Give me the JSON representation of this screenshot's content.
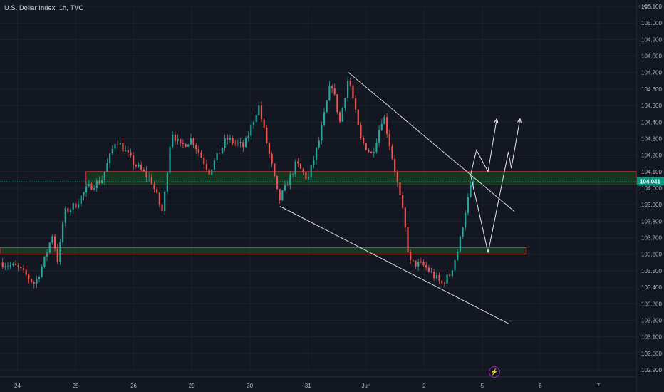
{
  "header": {
    "title": "U.S. Dollar Index, 1h, TVC",
    "currency": "USD"
  },
  "bolt_icon": "⚡",
  "colors": {
    "background": "#131722",
    "up": "#26a69a",
    "down": "#ef5350",
    "zone_fill": "#1b5e20",
    "zone_border": "#f23645",
    "price_badge": "#089981",
    "lines": "#ffffff"
  },
  "chart_data": {
    "type": "candlestick",
    "symbol": "U.S. Dollar Index",
    "timeframe": "1h",
    "source": "TVC",
    "currency": "USD",
    "ylim": [
      102.9,
      105.1
    ],
    "y_ticks": [
      "105.100",
      "105.000",
      "104.900",
      "104.800",
      "104.700",
      "104.600",
      "104.500",
      "104.400",
      "104.300",
      "104.200",
      "104.100",
      "104.000",
      "103.900",
      "103.800",
      "103.700",
      "103.600",
      "103.500",
      "103.400",
      "103.300",
      "103.200",
      "103.100",
      "103.000",
      "102.900"
    ],
    "x_ticks": [
      {
        "label": "24",
        "x": 0.3
      },
      {
        "label": "25",
        "x": 1.3
      },
      {
        "label": "26",
        "x": 2.3
      },
      {
        "label": "29",
        "x": 3.3
      },
      {
        "label": "30",
        "x": 4.3
      },
      {
        "label": "31",
        "x": 5.3
      },
      {
        "label": "Jun",
        "x": 6.3
      },
      {
        "label": "2",
        "x": 7.3
      },
      {
        "label": "5",
        "x": 8.3
      },
      {
        "label": "6",
        "x": 9.3
      },
      {
        "label": "7",
        "x": 10.3
      }
    ],
    "x_range": [
      0,
      10.95
    ],
    "grid": true,
    "last_price": "104.041",
    "price_path": [
      [
        0,
        103.55
      ],
      [
        0.3,
        103.52
      ],
      [
        0.6,
        103.42
      ],
      [
        0.75,
        103.55
      ],
      [
        0.9,
        103.72
      ],
      [
        1.0,
        103.55
      ],
      [
        1.1,
        103.85
      ],
      [
        1.3,
        103.9
      ],
      [
        1.5,
        104.0
      ],
      [
        1.75,
        104.05
      ],
      [
        2.0,
        104.3
      ],
      [
        2.3,
        104.15
      ],
      [
        2.6,
        104.05
      ],
      [
        2.8,
        103.85
      ],
      [
        2.95,
        104.35
      ],
      [
        3.1,
        104.25
      ],
      [
        3.3,
        104.3
      ],
      [
        3.6,
        104.1
      ],
      [
        3.9,
        104.3
      ],
      [
        4.2,
        104.25
      ],
      [
        4.45,
        104.5
      ],
      [
        4.7,
        104.1
      ],
      [
        4.8,
        103.92
      ],
      [
        5.1,
        104.15
      ],
      [
        5.3,
        104.05
      ],
      [
        5.5,
        104.3
      ],
      [
        5.7,
        104.65
      ],
      [
        5.85,
        104.4
      ],
      [
        6.0,
        104.68
      ],
      [
        6.2,
        104.3
      ],
      [
        6.4,
        104.2
      ],
      [
        6.6,
        104.45
      ],
      [
        6.8,
        104.1
      ],
      [
        6.95,
        103.82
      ],
      [
        7.05,
        103.55
      ],
      [
        7.3,
        103.53
      ],
      [
        7.6,
        103.42
      ],
      [
        7.75,
        103.48
      ],
      [
        7.9,
        103.65
      ],
      [
        8.0,
        103.85
      ],
      [
        8.1,
        104.0
      ],
      [
        8.15,
        104.04
      ]
    ],
    "zones": [
      {
        "low": 104.02,
        "high": 104.1,
        "x_start": 1.48,
        "x_end": 10.95
      },
      {
        "low": 103.6,
        "high": 103.64,
        "x_start": 0,
        "x_end": 9.06
      }
    ],
    "trendlines": [
      {
        "p1": [
          6.0,
          104.7
        ],
        "p2": [
          8.85,
          103.86
        ]
      },
      {
        "p1": [
          4.82,
          103.89
        ],
        "p2": [
          8.75,
          103.18
        ]
      }
    ],
    "projections": [
      [
        [
          8.1,
          104.08
        ],
        [
          8.2,
          104.23
        ],
        [
          8.4,
          104.1
        ],
        [
          8.55,
          104.42
        ]
      ],
      [
        [
          8.1,
          104.08
        ],
        [
          8.4,
          103.61
        ],
        [
          8.75,
          104.22
        ],
        [
          8.8,
          104.12
        ],
        [
          8.95,
          104.42
        ]
      ]
    ]
  }
}
